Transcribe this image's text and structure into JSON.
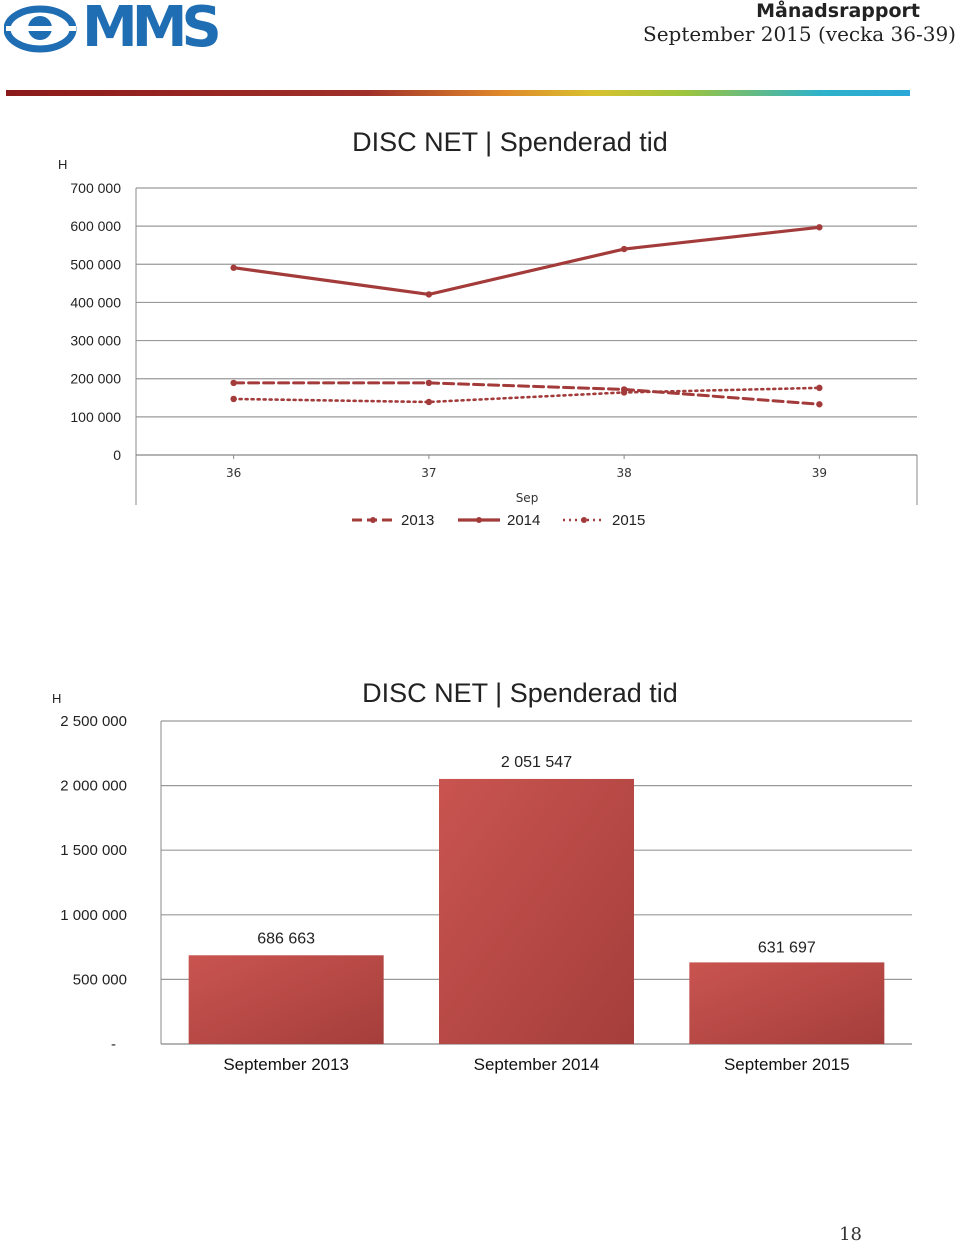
{
  "header": {
    "logo_text": "MMS",
    "report_title": "Månadsrapport",
    "report_period": "September 2015 (vecka 36-39)"
  },
  "page_number": "18",
  "colors": {
    "series": "#a33b3b",
    "bar_light": "#c95450",
    "bar_dark": "#a83f3c",
    "grid": "#9a9a9a",
    "brand": "#1f6db3"
  },
  "chart_data": [
    {
      "type": "line",
      "title": "DISC NET | Spenderad tid",
      "ylabel": "H",
      "xlabel": "Sep",
      "x": [
        "36",
        "37",
        "38",
        "39"
      ],
      "ylim": [
        0,
        700000
      ],
      "yticks": [
        "700 000",
        "600 000",
        "500 000",
        "400 000",
        "300 000",
        "200 000",
        "100 000",
        "0"
      ],
      "grid": true,
      "legend_position": "bottom",
      "series": [
        {
          "name": "2013",
          "style": "dashed",
          "values": [
            189000,
            189000,
            172000,
            133000
          ]
        },
        {
          "name": "2014",
          "style": "solid",
          "values": [
            491000,
            421000,
            540000,
            597000
          ]
        },
        {
          "name": "2015",
          "style": "dotted",
          "values": [
            147000,
            139000,
            164000,
            176000
          ]
        }
      ]
    },
    {
      "type": "bar",
      "title": "DISC NET | Spenderad tid",
      "ylabel": "H",
      "categories": [
        "September 2013",
        "September 2014",
        "September 2015"
      ],
      "values": [
        686663,
        2051547,
        631697
      ],
      "data_labels": [
        "686 663",
        "2 051 547",
        "631 697"
      ],
      "ylim": [
        0,
        2500000
      ],
      "yticks": [
        "2 500 000",
        "2 000 000",
        "1 500 000",
        "1 000 000",
        "500 000",
        "-"
      ],
      "grid": true
    }
  ]
}
